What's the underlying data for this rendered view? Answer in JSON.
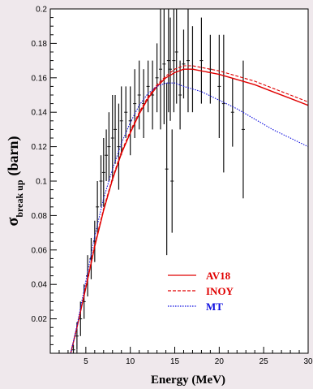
{
  "chart_data": {
    "type": "line",
    "xlabel": "Energy (MeV)",
    "ylabel_main": "σ",
    "ylabel_sub": "break up",
    "ylabel_unit": "(barn)",
    "xlim": [
      1,
      30
    ],
    "ylim": [
      0,
      0.2
    ],
    "x_ticks": [
      5,
      10,
      15,
      20,
      25,
      30
    ],
    "y_ticks": [
      0.02,
      0.04,
      0.06,
      0.08,
      0.1,
      0.12,
      0.14,
      0.16,
      0.18,
      0.2
    ],
    "x_tick_labels": [
      "5",
      "10",
      "15",
      "20",
      "25",
      "30"
    ],
    "y_tick_labels": [
      "0.02",
      "0.04",
      "0.06",
      "0.08",
      "0.1",
      "0.12",
      "0.14",
      "0.16",
      "0.18",
      "0.2"
    ],
    "legend_position": "bottom-right",
    "colors": {
      "background": "#efe8ec",
      "plot_bg": "#ffffff",
      "AV18": "#e00000",
      "INOY": "#e00000",
      "MT": "#1010e0"
    },
    "series": [
      {
        "name": "AV18",
        "style": "solid",
        "x": [
          3.3,
          4,
          5,
          6,
          7,
          8,
          9,
          10,
          11,
          12,
          13,
          14,
          15,
          16,
          17,
          18,
          20,
          22,
          24,
          26,
          28,
          30
        ],
        "y": [
          0,
          0.015,
          0.038,
          0.062,
          0.083,
          0.101,
          0.116,
          0.128,
          0.139,
          0.148,
          0.155,
          0.16,
          0.163,
          0.165,
          0.165,
          0.164,
          0.162,
          0.159,
          0.156,
          0.152,
          0.148,
          0.144
        ]
      },
      {
        "name": "INOY",
        "style": "dashed",
        "x": [
          3.3,
          4,
          5,
          6,
          7,
          8,
          9,
          10,
          11,
          12,
          13,
          14,
          15,
          16,
          17,
          18,
          20,
          22,
          24,
          26,
          28,
          30
        ],
        "y": [
          0,
          0.015,
          0.039,
          0.063,
          0.084,
          0.102,
          0.117,
          0.129,
          0.14,
          0.149,
          0.156,
          0.161,
          0.165,
          0.167,
          0.167,
          0.166,
          0.164,
          0.161,
          0.158,
          0.154,
          0.15,
          0.146
        ]
      },
      {
        "name": "MT",
        "style": "dotted",
        "x": [
          3.3,
          4,
          5,
          6,
          7,
          8,
          9,
          10,
          11,
          12,
          13,
          14,
          15,
          16,
          18,
          20,
          22,
          24,
          26,
          28,
          30
        ],
        "y": [
          0,
          0.016,
          0.042,
          0.068,
          0.09,
          0.107,
          0.122,
          0.134,
          0.144,
          0.151,
          0.155,
          0.157,
          0.157,
          0.155,
          0.152,
          0.147,
          0.142,
          0.136,
          0.13,
          0.125,
          0.12
        ]
      }
    ],
    "experimental": {
      "x": [
        3.6,
        4.0,
        4.4,
        4.8,
        5.2,
        5.6,
        6.0,
        6.3,
        6.7,
        7.0,
        7.3,
        7.6,
        8.0,
        8.3,
        8.7,
        9.0,
        9.5,
        10.0,
        10.5,
        11.0,
        11.5,
        12.0,
        12.5,
        13.0,
        13.4,
        13.8,
        14.1,
        14.3,
        14.5,
        14.7,
        14.9,
        15.2,
        15.6,
        16.0,
        16.5,
        17.0,
        18.0,
        19.0,
        20.0,
        20.5,
        21.5,
        22.7
      ],
      "y": [
        0.002,
        0.01,
        0.02,
        0.03,
        0.045,
        0.055,
        0.065,
        0.085,
        0.1,
        0.105,
        0.115,
        0.12,
        0.125,
        0.13,
        0.12,
        0.135,
        0.14,
        0.135,
        0.145,
        0.15,
        0.145,
        0.155,
        0.15,
        0.16,
        0.165,
        0.168,
        0.107,
        0.17,
        0.165,
        0.1,
        0.17,
        0.175,
        0.15,
        0.168,
        0.17,
        0.165,
        0.17,
        0.165,
        0.155,
        0.145,
        0.14,
        0.13
      ],
      "yerr": [
        0.003,
        0.008,
        0.01,
        0.01,
        0.012,
        0.012,
        0.012,
        0.015,
        0.015,
        0.02,
        0.015,
        0.02,
        0.025,
        0.02,
        0.025,
        0.02,
        0.015,
        0.02,
        0.02,
        0.02,
        0.02,
        0.015,
        0.02,
        0.02,
        0.035,
        0.035,
        0.05,
        0.03,
        0.03,
        0.03,
        0.03,
        0.03,
        0.02,
        0.02,
        0.03,
        0.025,
        0.025,
        0.02,
        0.03,
        0.04,
        0.02,
        0.04
      ]
    }
  }
}
